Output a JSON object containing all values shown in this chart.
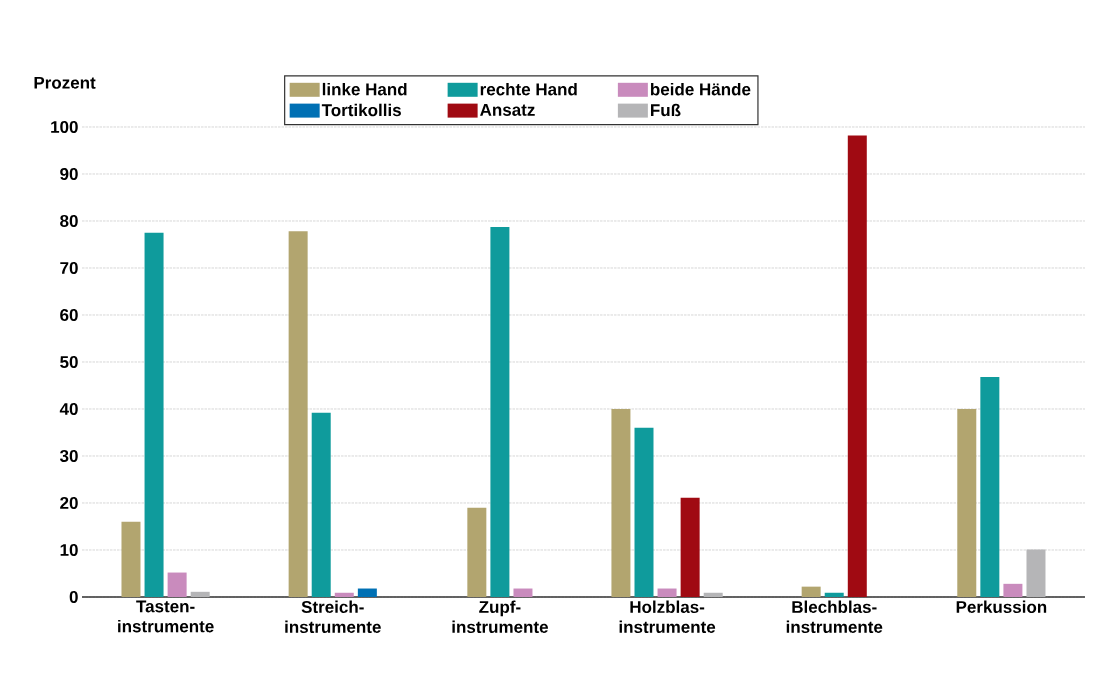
{
  "chart_data": {
    "type": "bar",
    "ylabel": "Prozent",
    "categories": [
      "Tasten- instrumente",
      "Streich- instrumente",
      "Zupf- instrumente",
      "Holzblas- instrumente",
      "Blechblas- instrumente",
      "Perkussion"
    ],
    "series": [
      {
        "name": "linke Hand",
        "color": "#b2a56f",
        "values": [
          16,
          77.8,
          19,
          40,
          2.2,
          40
        ]
      },
      {
        "name": "rechte Hand",
        "color": "#0f9b9c",
        "values": [
          77.5,
          39.2,
          78.7,
          36,
          0.9,
          46.8
        ]
      },
      {
        "name": "beide Hände",
        "color": "#c98bbd",
        "values": [
          5.2,
          0.9,
          1.8,
          1.8,
          null,
          2.8
        ]
      },
      {
        "name": "Tortikollis",
        "color": "#0070b4",
        "values": [
          null,
          1.8,
          null,
          null,
          null,
          null
        ]
      },
      {
        "name": "Ansatz",
        "color": "#a00a12",
        "values": [
          null,
          null,
          null,
          21.1,
          98.2,
          null
        ]
      },
      {
        "name": "Fuß",
        "color": "#b5b5b7",
        "values": [
          1.1,
          null,
          null,
          0.9,
          null,
          10.1
        ]
      }
    ],
    "ylim": [
      0,
      100
    ],
    "yticks": [
      0,
      10,
      20,
      30,
      40,
      50,
      60,
      70,
      80,
      90,
      100
    ],
    "grid": "y",
    "legend": "top"
  }
}
